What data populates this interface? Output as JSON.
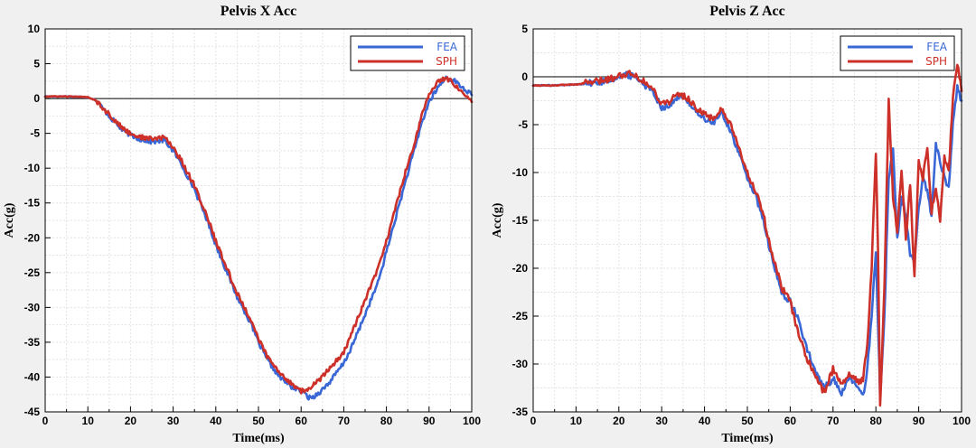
{
  "chart_data": [
    {
      "type": "line",
      "title": "Pelvis X Acc",
      "xlabel": "Time(ms)",
      "ylabel": "Acc(g)",
      "xlim": [
        0,
        100
      ],
      "ylim": [
        -45,
        10
      ],
      "xticks": [
        0,
        10,
        20,
        30,
        40,
        50,
        60,
        70,
        80,
        90,
        100
      ],
      "yticks": [
        10,
        5,
        0,
        -5,
        -10,
        -15,
        -20,
        -25,
        -30,
        -35,
        -40,
        -45
      ],
      "grid": true,
      "zero_line": true,
      "legend": "top-right",
      "series": [
        {
          "name": "FEA",
          "color": "#3a67d6",
          "x": [
            0,
            5,
            10,
            12,
            15,
            18,
            20,
            22,
            25,
            28,
            30,
            32,
            35,
            38,
            40,
            42,
            45,
            48,
            50,
            52,
            55,
            58,
            60,
            62,
            63,
            65,
            67,
            70,
            72,
            75,
            78,
            80,
            82,
            84,
            86,
            87,
            88,
            90,
            92,
            94,
            96,
            98,
            100
          ],
          "y": [
            0.3,
            0.3,
            0.2,
            -0.3,
            -2.5,
            -4.5,
            -5.2,
            -5.8,
            -6.2,
            -6.0,
            -7.5,
            -9.5,
            -13.0,
            -17.5,
            -21.0,
            -24.0,
            -28.5,
            -32.0,
            -35.0,
            -37.5,
            -40.0,
            -41.5,
            -42.0,
            -43.0,
            -42.8,
            -41.8,
            -40.5,
            -38.0,
            -35.5,
            -31.0,
            -26.5,
            -22.0,
            -17.5,
            -13.0,
            -8.5,
            -6.5,
            -4.0,
            -0.5,
            1.5,
            3.0,
            2.5,
            1.5,
            0.5
          ]
        },
        {
          "name": "SPH",
          "color": "#cc3028",
          "x": [
            0,
            5,
            10,
            12,
            15,
            18,
            20,
            22,
            25,
            28,
            30,
            32,
            35,
            38,
            40,
            42,
            45,
            48,
            50,
            52,
            55,
            58,
            60,
            62,
            63,
            65,
            67,
            70,
            72,
            75,
            78,
            80,
            82,
            84,
            86,
            87,
            88,
            90,
            92,
            94,
            96,
            98,
            100
          ],
          "y": [
            0.3,
            0.3,
            0.2,
            -0.3,
            -2.3,
            -4.2,
            -5.0,
            -5.5,
            -5.8,
            -5.6,
            -7.0,
            -9.0,
            -12.5,
            -17.0,
            -20.5,
            -23.5,
            -28.0,
            -31.5,
            -34.5,
            -37.0,
            -39.5,
            -41.0,
            -42.0,
            -41.8,
            -41.0,
            -40.0,
            -38.5,
            -36.5,
            -33.5,
            -29.0,
            -24.5,
            -20.5,
            -16.0,
            -11.5,
            -7.5,
            -5.5,
            -3.0,
            0.5,
            2.5,
            3.0,
            2.0,
            1.0,
            -0.5
          ]
        }
      ]
    },
    {
      "type": "line",
      "title": "Pelvis Z Acc",
      "xlabel": "Time(ms)",
      "ylabel": "Acc(g)",
      "xlim": [
        0,
        100
      ],
      "ylim": [
        -35,
        5
      ],
      "xticks": [
        0,
        10,
        20,
        30,
        40,
        50,
        60,
        70,
        80,
        90,
        100
      ],
      "yticks": [
        5,
        0,
        -5,
        -10,
        -15,
        -20,
        -25,
        -30,
        -35
      ],
      "grid": true,
      "zero_line": true,
      "legend": "top-right",
      "series": [
        {
          "name": "FEA",
          "color": "#3a67d6",
          "x": [
            0,
            5,
            10,
            15,
            18,
            20,
            22,
            24,
            26,
            28,
            30,
            32,
            34,
            36,
            38,
            40,
            42,
            44,
            46,
            48,
            50,
            52,
            54,
            56,
            58,
            60,
            62,
            64,
            66,
            68,
            70,
            72,
            74,
            76,
            77,
            78,
            79,
            80,
            80.5,
            81,
            82,
            83,
            84,
            85,
            86,
            87,
            88,
            89,
            90,
            91,
            92,
            93,
            94,
            95,
            96,
            97,
            98,
            99,
            100
          ],
          "y": [
            -0.9,
            -0.9,
            -0.8,
            -0.6,
            -0.3,
            0.0,
            0.2,
            0.0,
            -0.8,
            -1.5,
            -3.2,
            -3.0,
            -2.0,
            -2.5,
            -3.5,
            -4.5,
            -4.8,
            -3.8,
            -5.5,
            -8.0,
            -10.5,
            -12.5,
            -15.5,
            -19.5,
            -22.5,
            -23.5,
            -25.5,
            -28.5,
            -31.0,
            -32.5,
            -31.5,
            -33.0,
            -31.5,
            -32.5,
            -33.5,
            -30.5,
            -25.0,
            -18.0,
            -26.0,
            -33.5,
            -25.0,
            -10.5,
            -7.5,
            -17.0,
            -12.5,
            -14.5,
            -18.5,
            -19.5,
            -14.0,
            -10.5,
            -12.0,
            -14.5,
            -7.0,
            -9.0,
            -10.5,
            -11.5,
            -5.0,
            -1.0,
            -2.5
          ]
        },
        {
          "name": "SPH",
          "color": "#cc3028",
          "x": [
            0,
            5,
            10,
            15,
            18,
            20,
            22,
            24,
            26,
            28,
            30,
            32,
            34,
            36,
            38,
            40,
            42,
            44,
            46,
            48,
            50,
            52,
            54,
            56,
            58,
            60,
            62,
            64,
            66,
            68,
            70,
            72,
            74,
            76,
            77,
            78,
            79,
            80,
            80.5,
            81,
            82,
            83,
            84,
            85,
            86,
            87,
            88,
            89,
            90,
            91,
            92,
            93,
            94,
            95,
            96,
            97,
            98,
            99,
            100
          ],
          "y": [
            -0.9,
            -0.9,
            -0.8,
            -0.5,
            -0.2,
            0.1,
            0.4,
            0.2,
            -0.6,
            -1.3,
            -2.8,
            -2.5,
            -1.8,
            -2.2,
            -3.2,
            -4.0,
            -4.3,
            -3.5,
            -5.0,
            -7.5,
            -10.0,
            -12.0,
            -15.0,
            -19.0,
            -22.0,
            -23.5,
            -27.0,
            -29.5,
            -31.5,
            -33.0,
            -30.5,
            -32.0,
            -31.0,
            -32.0,
            -31.5,
            -28.0,
            -20.0,
            -8.0,
            -18.0,
            -34.5,
            -22.0,
            -2.5,
            -12.5,
            -16.0,
            -9.5,
            -17.0,
            -11.0,
            -21.0,
            -9.0,
            -10.5,
            -7.5,
            -14.0,
            -11.5,
            -15.0,
            -8.5,
            -10.0,
            -2.0,
            1.5,
            -1.5
          ]
        }
      ]
    }
  ]
}
